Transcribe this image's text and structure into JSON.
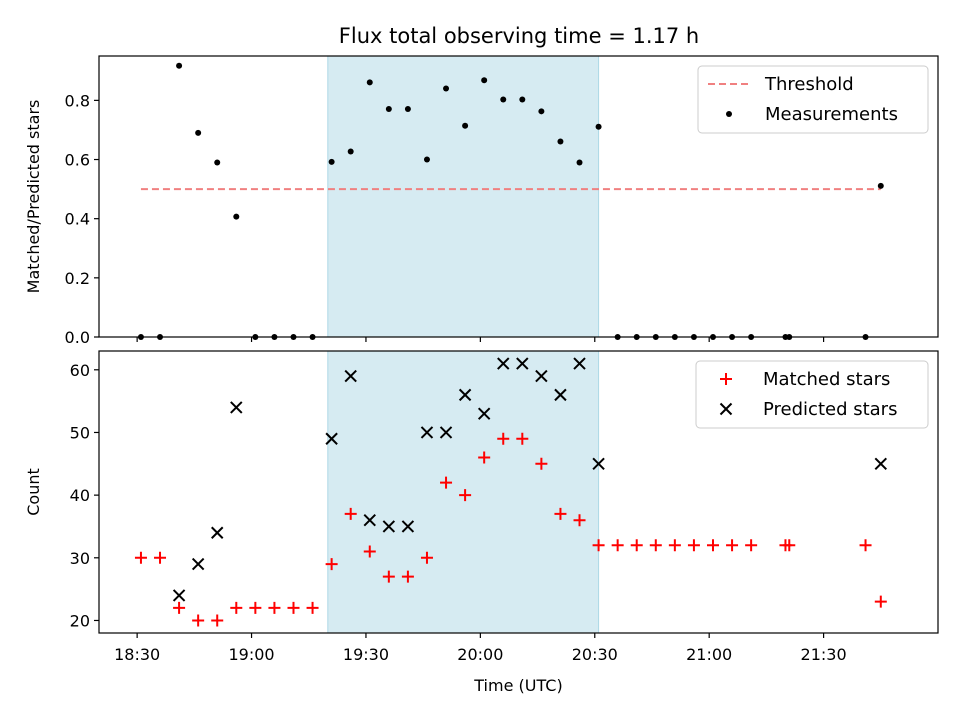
{
  "title": "Flux total observing time = 1.17 h",
  "colors": {
    "threshold": "#f08080",
    "measurement": "#000000",
    "matched": "#ff0000",
    "predicted": "#000000",
    "shade": "#add8e6"
  },
  "chart_data": [
    {
      "type": "scatter",
      "ylabel": "Matched/Predicted stars",
      "xlabel": "",
      "xlim": [
        "18:20",
        "22:00"
      ],
      "ylim": [
        0,
        0.95
      ],
      "yticks": [
        "0.0",
        "0.2",
        "0.4",
        "0.6",
        "0.8"
      ],
      "shaded_span": [
        "19:20",
        "20:31"
      ],
      "legend_location": "upper right",
      "threshold": {
        "name": "Threshold",
        "value": 0.5,
        "x_range": [
          "18:31",
          "21:45"
        ]
      },
      "series": [
        {
          "name": "Measurements",
          "points": [
            [
              "18:31",
              0.0
            ],
            [
              "18:36",
              0.0
            ],
            [
              "18:41",
              0.917
            ],
            [
              "18:46",
              0.69
            ],
            [
              "18:51",
              0.59
            ],
            [
              "18:56",
              0.407
            ],
            [
              "19:01",
              0.0
            ],
            [
              "19:06",
              0.0
            ],
            [
              "19:11",
              0.0
            ],
            [
              "19:16",
              0.0
            ],
            [
              "19:21",
              0.592
            ],
            [
              "19:26",
              0.627
            ],
            [
              "19:31",
              0.861
            ],
            [
              "19:36",
              0.771
            ],
            [
              "19:41",
              0.771
            ],
            [
              "19:46",
              0.6
            ],
            [
              "19:51",
              0.84
            ],
            [
              "19:56",
              0.714
            ],
            [
              "20:01",
              0.868
            ],
            [
              "20:06",
              0.803
            ],
            [
              "20:11",
              0.803
            ],
            [
              "20:16",
              0.763
            ],
            [
              "20:21",
              0.661
            ],
            [
              "20:26",
              0.59
            ],
            [
              "20:31",
              0.711
            ],
            [
              "20:36",
              0.0
            ],
            [
              "20:41",
              0.0
            ],
            [
              "20:46",
              0.0
            ],
            [
              "20:51",
              0.0
            ],
            [
              "20:56",
              0.0
            ],
            [
              "21:01",
              0.0
            ],
            [
              "21:06",
              0.0
            ],
            [
              "21:11",
              0.0
            ],
            [
              "21:20",
              0.0
            ],
            [
              "21:21",
              0.0
            ],
            [
              "21:41",
              0.0
            ],
            [
              "21:45",
              0.511
            ]
          ]
        }
      ]
    },
    {
      "type": "scatter",
      "ylabel": "Count",
      "xlabel": "Time (UTC)",
      "xlim": [
        "18:20",
        "22:00"
      ],
      "ylim": [
        18,
        63
      ],
      "yticks": [
        "20",
        "30",
        "40",
        "50",
        "60"
      ],
      "xticks": [
        "18:30",
        "19:00",
        "19:30",
        "20:00",
        "20:30",
        "21:00",
        "21:30"
      ],
      "shaded_span": [
        "19:20",
        "20:31"
      ],
      "legend_location": "upper right",
      "series": [
        {
          "name": "Matched stars",
          "marker": "+",
          "points": [
            [
              "18:31",
              30
            ],
            [
              "18:36",
              30
            ],
            [
              "18:41",
              22
            ],
            [
              "18:46",
              20
            ],
            [
              "18:51",
              20
            ],
            [
              "18:56",
              22
            ],
            [
              "19:01",
              22
            ],
            [
              "19:06",
              22
            ],
            [
              "19:11",
              22
            ],
            [
              "19:16",
              22
            ],
            [
              "19:21",
              29
            ],
            [
              "19:26",
              37
            ],
            [
              "19:31",
              31
            ],
            [
              "19:36",
              27
            ],
            [
              "19:41",
              27
            ],
            [
              "19:46",
              30
            ],
            [
              "19:51",
              42
            ],
            [
              "19:56",
              40
            ],
            [
              "20:01",
              46
            ],
            [
              "20:06",
              49
            ],
            [
              "20:11",
              49
            ],
            [
              "20:16",
              45
            ],
            [
              "20:21",
              37
            ],
            [
              "20:26",
              36
            ],
            [
              "20:31",
              32
            ],
            [
              "20:36",
              32
            ],
            [
              "20:41",
              32
            ],
            [
              "20:46",
              32
            ],
            [
              "20:51",
              32
            ],
            [
              "20:56",
              32
            ],
            [
              "21:01",
              32
            ],
            [
              "21:06",
              32
            ],
            [
              "21:11",
              32
            ],
            [
              "21:20",
              32
            ],
            [
              "21:21",
              32
            ],
            [
              "21:41",
              32
            ],
            [
              "21:45",
              23
            ]
          ]
        },
        {
          "name": "Predicted stars",
          "marker": "x",
          "points": [
            [
              "18:41",
              24
            ],
            [
              "18:46",
              29
            ],
            [
              "18:51",
              34
            ],
            [
              "18:56",
              54
            ],
            [
              "19:21",
              49
            ],
            [
              "19:26",
              59
            ],
            [
              "19:31",
              36
            ],
            [
              "19:36",
              35
            ],
            [
              "19:41",
              35
            ],
            [
              "19:46",
              50
            ],
            [
              "19:51",
              50
            ],
            [
              "19:56",
              56
            ],
            [
              "20:01",
              53
            ],
            [
              "20:06",
              61
            ],
            [
              "20:11",
              61
            ],
            [
              "20:16",
              59
            ],
            [
              "20:21",
              56
            ],
            [
              "20:26",
              61
            ],
            [
              "20:31",
              45
            ],
            [
              "21:45",
              45
            ]
          ]
        }
      ]
    }
  ]
}
